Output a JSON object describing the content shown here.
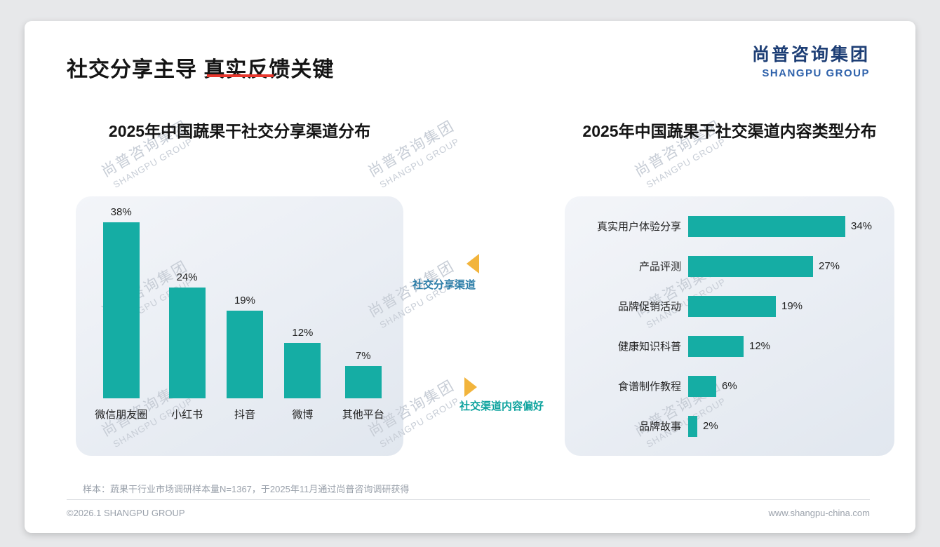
{
  "page": {
    "title": "社交分享主导 真实反馈关键",
    "logo": {
      "cn": "尚普咨询集团",
      "en": "SHANGPU GROUP"
    },
    "watermark": {
      "cn": "尚普咨询集团",
      "en": "SHANGPU GROUP"
    },
    "sample_note": "样本：蔬果干行业市场调研样本量N=1367，于2025年11月通过尚普咨询调研获得",
    "footer": {
      "left": "©2026.1 SHANGPU GROUP",
      "right": "www.shangpu-china.com"
    }
  },
  "annotations": {
    "left_chart_label": "社交分享渠道",
    "right_chart_label": "社交渠道内容偏好"
  },
  "colors": {
    "bar_teal": "#15ada4",
    "accent_red": "#e8382e",
    "arrow_yellow": "#f2b43c",
    "annotation_blue": "#2b7da8",
    "annotation_teal": "#0ea39e",
    "logo_navy": "#1d3e75",
    "logo_blue": "#2f62ab"
  },
  "chart_data": [
    {
      "type": "bar",
      "orientation": "vertical",
      "title": "2025年中国蔬果干社交分享渠道分布",
      "categories": [
        "微信朋友圈",
        "小红书",
        "抖音",
        "微博",
        "其他平台"
      ],
      "values": [
        38,
        24,
        19,
        12,
        7
      ],
      "value_labels": [
        "38%",
        "24%",
        "19%",
        "12%",
        "7%"
      ],
      "unit": "%",
      "ylim": [
        0,
        40
      ],
      "grid": false,
      "legend": false
    },
    {
      "type": "bar",
      "orientation": "horizontal",
      "title": "2025年中国蔬果干社交渠道内容类型分布",
      "categories": [
        "真实用户体验分享",
        "产品评测",
        "品牌促销活动",
        "健康知识科普",
        "食谱制作教程",
        "品牌故事"
      ],
      "values": [
        34,
        27,
        19,
        12,
        6,
        2
      ],
      "value_labels": [
        "34%",
        "27%",
        "19%",
        "12%",
        "6%",
        "2%"
      ],
      "unit": "%",
      "xlim": [
        0,
        40
      ],
      "grid": false,
      "legend": false
    }
  ]
}
